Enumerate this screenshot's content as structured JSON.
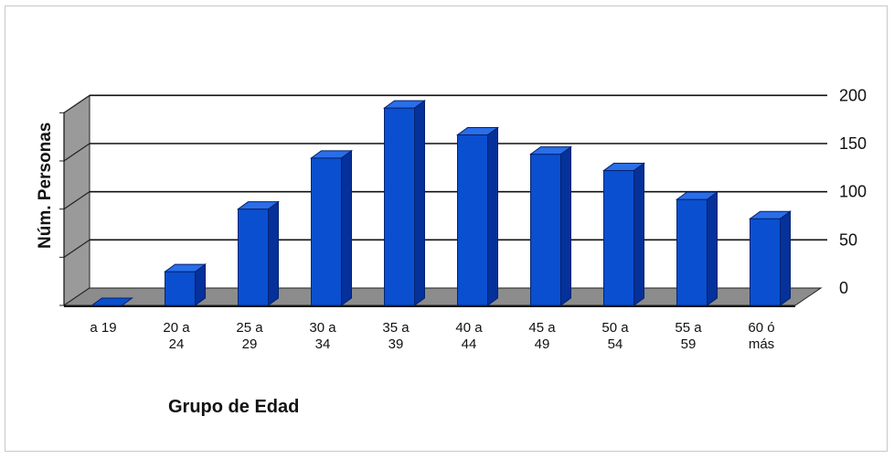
{
  "chart_data": {
    "type": "bar",
    "ylabel": "Núm. Personas",
    "xlabel": "Grupo de Edad",
    "ylim": [
      0,
      200
    ],
    "yticks": [
      "0",
      "50",
      "100",
      "150",
      "200"
    ],
    "categories": [
      {
        "line1": "a 19",
        "line2": ""
      },
      {
        "line1": "20 a",
        "line2": "24"
      },
      {
        "line1": "25 a",
        "line2": "29"
      },
      {
        "line1": "30 a",
        "line2": "34"
      },
      {
        "line1": "35 a",
        "line2": "39"
      },
      {
        "line1": "40 a",
        "line2": "44"
      },
      {
        "line1": "45 a",
        "line2": "49"
      },
      {
        "line1": "50 a",
        "line2": "54"
      },
      {
        "line1": "55 a",
        "line2": "59"
      },
      {
        "line1": "60 ó",
        "line2": "más"
      }
    ],
    "values": [
      0,
      35,
      100,
      153,
      205,
      177,
      157,
      140,
      110,
      90
    ],
    "grid": true,
    "bar_color": "#0a4fd0",
    "bar_side_color": "#06309a",
    "bar_top_color": "#2a6ee8",
    "floor_color": "#8c8c8c"
  }
}
